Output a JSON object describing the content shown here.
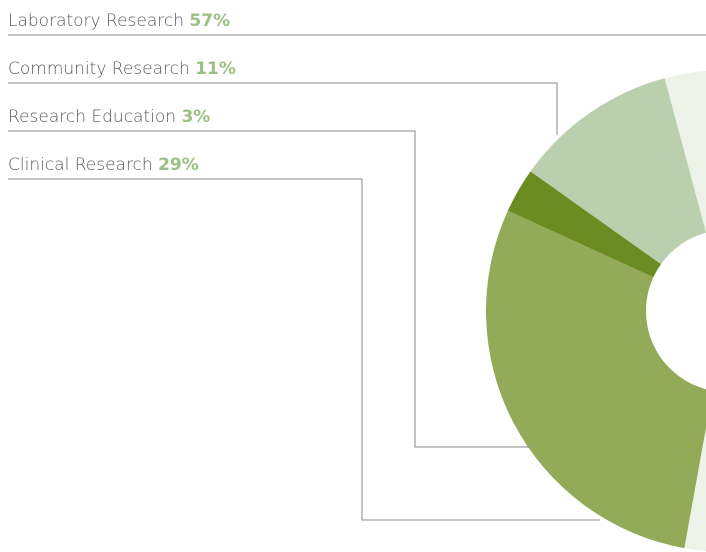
{
  "chart_data": {
    "type": "pie",
    "categories": [
      "Laboratory Research",
      "Community Research",
      "Research Education",
      "Clinical Research"
    ],
    "values": [
      57,
      11,
      3,
      29
    ],
    "value_labels": [
      "57%",
      "11%",
      "3%",
      "29%"
    ],
    "colors": [
      "#eef3ea",
      "#b9cfae",
      "#6b8c23",
      "#93aa59"
    ]
  }
}
